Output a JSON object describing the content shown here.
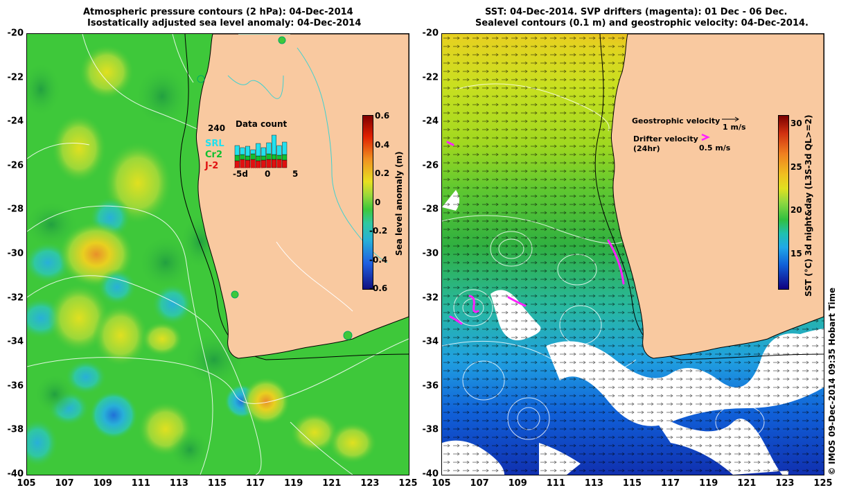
{
  "left_panel": {
    "title_line1": "Atmospheric pressure contours (2 hPa): 04-Dec-2014",
    "title_line2": "Isostatically adjusted sea level anomaly: 04-Dec-2014",
    "colorbar_label": "Sea level anomaly (m)",
    "colorbar_ticks": [
      "0.6",
      "0.4",
      "0.2",
      "0",
      "-0.2",
      "-0.4",
      "-0.6"
    ],
    "colorbar_range": [
      -0.6,
      0.6
    ],
    "inset": {
      "title": "Data count",
      "y_tick": "240",
      "x_ticks": [
        "-5d",
        "0",
        "5"
      ],
      "legend": [
        {
          "label": "SRL",
          "color": "#22e0ee"
        },
        {
          "label": "Cr2",
          "color": "#10c030"
        },
        {
          "label": "J-2",
          "color": "#e01010"
        }
      ]
    }
  },
  "right_panel": {
    "title_line1": "SST: 04-Dec-2014. SVP drifters (magenta): 01 Dec - 06 Dec.",
    "title_line2": "Sealevel contours (0.1 m) and geostrophic velocity: 04-Dec-2014.",
    "colorbar_label": "SST (°C) 3d night&day (L3S-3d QL>=2)",
    "colorbar_ticks": [
      "30",
      "25",
      "20",
      "15"
    ],
    "colorbar_range": [
      11,
      31
    ],
    "geo_velocity_label": "Geostrophic velocity",
    "geo_velocity_scale": "1 m/s",
    "drifter_velocity_label": "Drifter velocity",
    "drifter_velocity_sub": "(24hr)",
    "drifter_velocity_scale": "0.5 m/s"
  },
  "axes": {
    "x_ticks": [
      "105",
      "107",
      "109",
      "111",
      "113",
      "115",
      "117",
      "119",
      "121",
      "123",
      "125"
    ],
    "y_ticks": [
      "-20",
      "-22",
      "-24",
      "-26",
      "-28",
      "-30",
      "-32",
      "-34",
      "-36",
      "-38",
      "-40"
    ],
    "lon_range": [
      105,
      125
    ],
    "lat_range": [
      -40,
      -20
    ]
  },
  "credit": "© IMOS 09-Dec-2014 09:35 Hobart Time",
  "colors": {
    "land": "#f9c9a0",
    "sla_background": "#3ec83a",
    "drifter": "#ff20ff"
  }
}
